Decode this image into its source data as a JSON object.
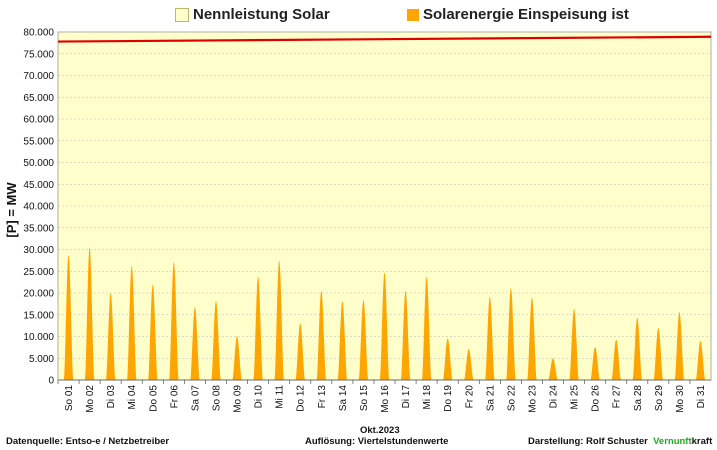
{
  "legend": {
    "capacity_label": "Nennleistung Solar",
    "feedin_label": "Solarenergie Einspeisung ist"
  },
  "footer": {
    "source": "Datenquelle:  Entso-e  / Netzbetreiber",
    "resolution": "Auflösung: Viertelstundenwerte",
    "credit_prefix": "Darstellung:  Rolf Schuster",
    "brand_green": "Vernunft",
    "brand_rest": "kraft"
  },
  "chart_data": {
    "type": "area",
    "ylabel": "[P]  =  MW",
    "xlabel": "Okt.2023",
    "ylim": [
      0,
      80000
    ],
    "yticks": [
      "0",
      "5.000",
      "10.000",
      "15.000",
      "20.000",
      "25.000",
      "30.000",
      "35.000",
      "40.000",
      "45.000",
      "50.000",
      "55.000",
      "60.000",
      "65.000",
      "70.000",
      "75.000",
      "80.000"
    ],
    "days": [
      "So 01",
      "Mo 02",
      "Di 03",
      "Mi 04",
      "Do 05",
      "Fr 06",
      "Sa 07",
      "So 08",
      "Mo 09",
      "Di 10",
      "Mi 11",
      "Do 12",
      "Fr 13",
      "Sa 14",
      "So 15",
      "Mo 16",
      "Di 17",
      "Mi 18",
      "Do 19",
      "Fr 20",
      "Sa 21",
      "So 22",
      "Mo 23",
      "Di 24",
      "Mi 25",
      "Do 26",
      "Fr 27",
      "Sa 28",
      "So 29",
      "Mo 30",
      "Di 31"
    ],
    "series": [
      {
        "name": "Solarenergie Einspeisung ist",
        "daily_peak": [
          28800,
          30500,
          20000,
          26300,
          22000,
          27200,
          16800,
          18200,
          10100,
          23900,
          27500,
          13100,
          20600,
          18200,
          18500,
          24800,
          20600,
          23800,
          9600,
          7100,
          19200,
          21200,
          19000,
          5000,
          16400,
          7600,
          9300,
          14400,
          12000,
          15700,
          9000
        ]
      },
      {
        "name": "Nennleistung Solar",
        "start": 77800,
        "end": 78900
      }
    ],
    "colors": {
      "plot_bg": "#ffffcc",
      "feedin": "#ffa500",
      "capacity_line": "#e00000",
      "brand_green": "#22aa22"
    }
  }
}
